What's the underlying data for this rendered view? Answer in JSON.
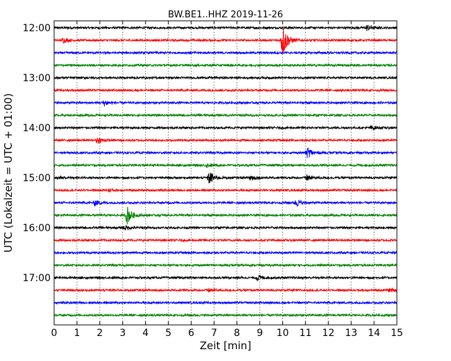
{
  "chart_data": {
    "type": "line",
    "title": "BW.BE1..HHZ 2019-11-26",
    "xlabel": "Zeit  [min]",
    "ylabel": "UTC (Lokalzeit = UTC + 01:00)",
    "xlim": [
      0,
      15
    ],
    "x_ticks": [
      "0",
      "1",
      "2",
      "3",
      "4",
      "5",
      "6",
      "7",
      "8",
      "9",
      "10",
      "11",
      "12",
      "13",
      "14",
      "15"
    ],
    "y_tick_labels": [
      "12:00",
      "13:00",
      "14:00",
      "15:00",
      "16:00",
      "17:00"
    ],
    "grid": "vertical dotted at each minute",
    "trace_colors": [
      "#000000",
      "#ff0000",
      "#0000ff",
      "#008000"
    ],
    "trace_start_times": [
      "12:00",
      "12:15",
      "12:30",
      "12:45",
      "13:00",
      "13:15",
      "13:30",
      "13:45",
      "14:00",
      "14:15",
      "14:30",
      "14:45",
      "15:00",
      "15:15",
      "15:30",
      "15:45",
      "16:00",
      "16:15",
      "16:30",
      "16:45",
      "17:00",
      "17:15",
      "17:30",
      "17:45"
    ],
    "events": [
      {
        "trace": "12:00",
        "minute": 13.7,
        "amplitude": 0.5
      },
      {
        "trace": "12:15",
        "minute": 10.0,
        "amplitude": 3.2
      },
      {
        "trace": "12:15",
        "minute": 0.4,
        "amplitude": 0.4
      },
      {
        "trace": "13:30",
        "minute": 2.2,
        "amplitude": 0.5
      },
      {
        "trace": "14:15",
        "minute": 1.9,
        "amplitude": 0.5
      },
      {
        "trace": "14:30",
        "minute": 11.1,
        "amplitude": 1.0
      },
      {
        "trace": "14:45",
        "minute": 6.7,
        "amplitude": 0.3
      },
      {
        "trace": "15:00",
        "minute": 6.8,
        "amplitude": 1.2
      },
      {
        "trace": "15:00",
        "minute": 8.6,
        "amplitude": 0.6
      },
      {
        "trace": "15:00",
        "minute": 11.1,
        "amplitude": 0.6
      },
      {
        "trace": "15:00",
        "minute": 0.3,
        "amplitude": 0.3
      },
      {
        "trace": "15:15",
        "minute": 2.4,
        "amplitude": 0.3
      },
      {
        "trace": "15:30",
        "minute": 1.8,
        "amplitude": 0.5
      },
      {
        "trace": "15:30",
        "minute": 10.6,
        "amplitude": 0.6
      },
      {
        "trace": "15:45",
        "minute": 3.2,
        "amplitude": 1.6
      },
      {
        "trace": "16:00",
        "minute": 3.1,
        "amplitude": 0.4
      },
      {
        "trace": "17:00",
        "minute": 8.9,
        "amplitude": 0.5
      },
      {
        "trace": "17:15",
        "minute": 6.8,
        "amplitude": 0.3
      },
      {
        "trace": "17:15",
        "minute": 14.7,
        "amplitude": 0.3
      },
      {
        "trace": "14:00",
        "minute": 13.9,
        "amplitude": 0.3
      }
    ]
  }
}
